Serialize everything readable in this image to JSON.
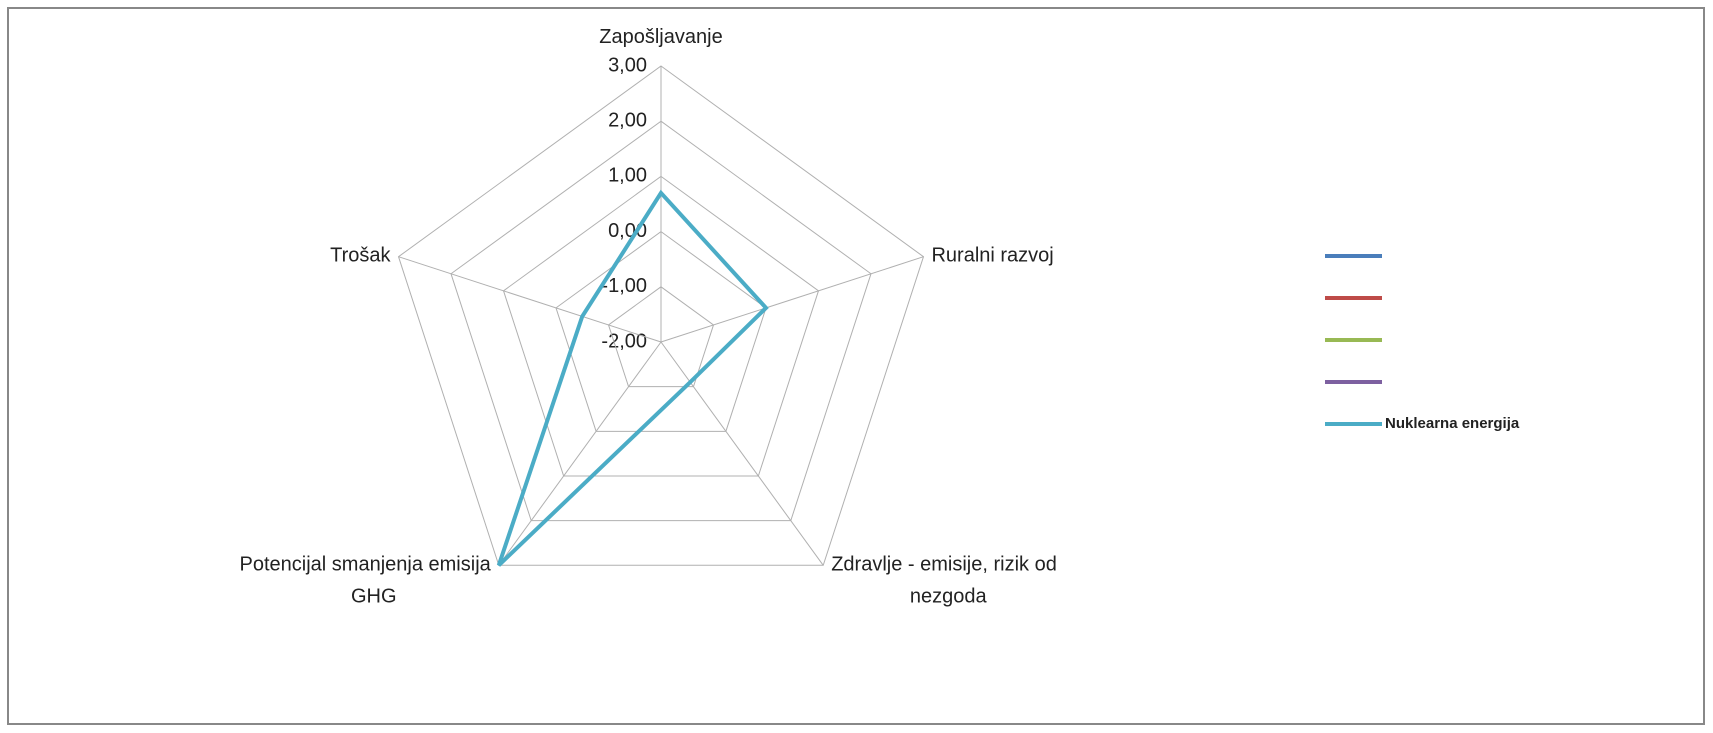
{
  "chart_data": {
    "type": "radar",
    "categories": [
      "Zapošljavanje",
      "Ruralni razvoj",
      "Zdravlje - emisije, rizik od nezgoda",
      "Potencijal smanjenja emisija GHG",
      "Trošak"
    ],
    "ylim": [
      -2,
      3
    ],
    "yticks": [
      {
        "value": -2,
        "label": "-2,00"
      },
      {
        "value": -1,
        "label": "-1,00"
      },
      {
        "value": 0,
        "label": "0,00"
      },
      {
        "value": 1,
        "label": "1,00"
      },
      {
        "value": 2,
        "label": "2,00"
      },
      {
        "value": 3,
        "label": "3,00"
      }
    ],
    "grid": true,
    "legend": "right",
    "series": [
      {
        "color": "#4a7ebb",
        "values": [
          null,
          null,
          null,
          null,
          null
        ]
      },
      {
        "color": "#be4b48",
        "values": [
          null,
          null,
          null,
          null,
          null
        ]
      },
      {
        "color": "#98b954",
        "values": [
          null,
          null,
          null,
          null,
          null
        ]
      },
      {
        "color": "#7d60a0",
        "values": [
          null,
          null,
          null,
          null,
          null
        ]
      },
      {
        "name": "Nuklearna energija",
        "color": "#4bacc6",
        "values": [
          0.7,
          0,
          -1.1,
          3,
          -0.5
        ]
      }
    ]
  }
}
